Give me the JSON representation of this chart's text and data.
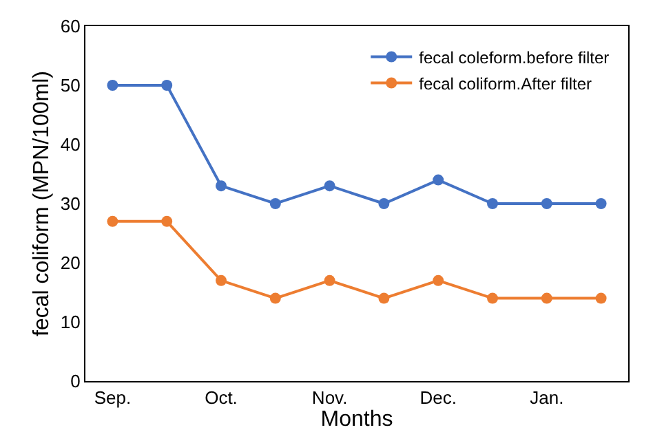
{
  "chart_data": {
    "type": "line",
    "xlabel": "Months",
    "ylabel": "fecal coliform (MPN/100ml)",
    "categories": [
      "Sep.",
      null,
      "Oct.",
      null,
      "Nov.",
      null,
      "Dec.",
      null,
      "Jan.",
      null
    ],
    "series": [
      {
        "name": "fecal coleform.before filter",
        "color": "#4472c4",
        "values": [
          50,
          50,
          33,
          30,
          33,
          30,
          34,
          30,
          30,
          30
        ]
      },
      {
        "name": "fecal coliform.After filter",
        "color": "#ed7d31",
        "values": [
          27,
          27,
          17,
          14,
          17,
          14,
          17,
          14,
          14,
          14
        ]
      }
    ],
    "ylim": [
      0,
      60
    ],
    "yticks": [
      0,
      10,
      20,
      30,
      40,
      50,
      60
    ],
    "legend": "top right",
    "marker": "circle",
    "line_style": "solid"
  }
}
